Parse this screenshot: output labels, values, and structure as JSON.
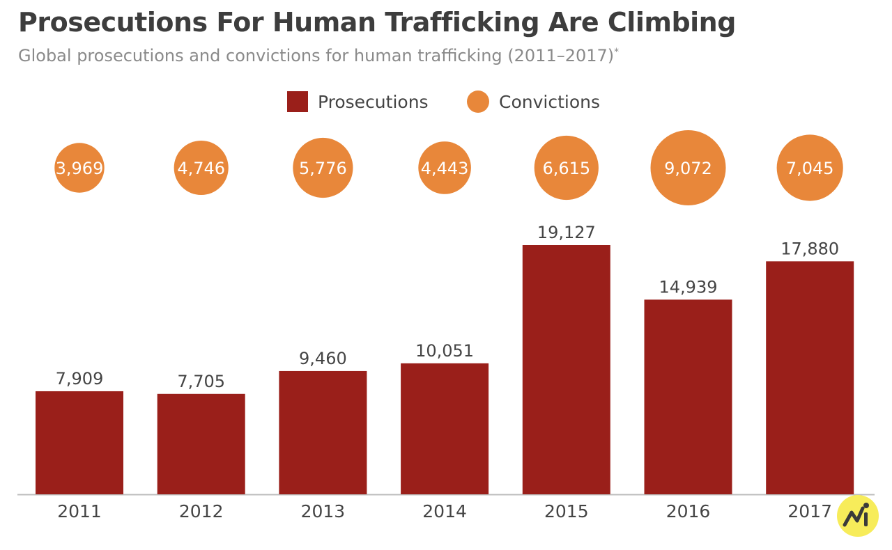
{
  "chart_data": {
    "type": "bar",
    "title": "Prosecutions For Human Trafficking Are Climbing",
    "subtitle": "Global prosecutions and convictions for human trafficking (2011–2017)",
    "subtitle_mark": "*",
    "categories": [
      "2011",
      "2012",
      "2013",
      "2014",
      "2015",
      "2016",
      "2017"
    ],
    "series": [
      {
        "name": "Prosecutions",
        "mark": "bar",
        "color": "#9a1f1a",
        "values": [
          7909,
          7705,
          9460,
          10051,
          19127,
          14939,
          17880
        ],
        "labels": [
          "7,909",
          "7,705",
          "9,460",
          "10,051",
          "19,127",
          "14,939",
          "17,880"
        ]
      },
      {
        "name": "Convictions",
        "mark": "bubble",
        "color": "#e8873a",
        "values": [
          3969,
          4746,
          5776,
          4443,
          6615,
          9072,
          7045
        ],
        "labels": [
          "3,969",
          "4,746",
          "5,776",
          "4,443",
          "6,615",
          "9,072",
          "7,045"
        ]
      }
    ],
    "ylim": [
      0,
      20000
    ],
    "grid": false,
    "legend_position": "top-center"
  },
  "logo_icon": "statista-style-badge-icon"
}
